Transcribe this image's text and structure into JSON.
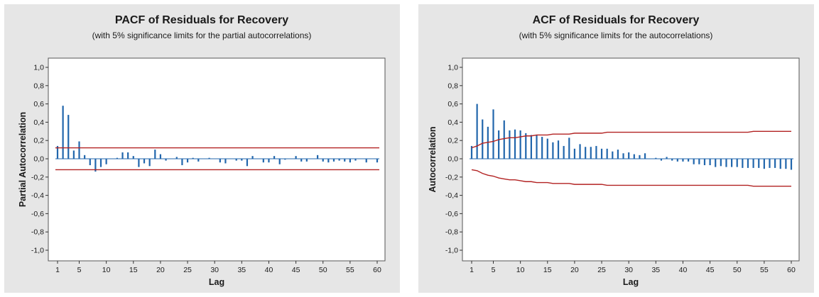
{
  "chart_data": [
    {
      "type": "bar",
      "title": "PACF of Residuals for Recovery",
      "subtitle": "(with 5% significance limits for the partial autocorrelations)",
      "xlabel": "Lag",
      "ylabel": "Partial Autocorrelation",
      "ylim": [
        -1.0,
        1.0
      ],
      "xlim": [
        1,
        60
      ],
      "xticks": [
        "1",
        "5",
        "10",
        "15",
        "20",
        "25",
        "30",
        "35",
        "40",
        "45",
        "50",
        "55",
        "60"
      ],
      "yticks": [
        "1,0",
        "0,8",
        "0,6",
        "0,4",
        "0,2",
        "0,0",
        "-0,2",
        "-0,4",
        "-0,6",
        "-0,8",
        "-1,0"
      ],
      "grid": false,
      "bar_color": "#2166ac",
      "limit_color": "#b22222",
      "x": [
        1,
        2,
        3,
        4,
        5,
        6,
        7,
        8,
        9,
        10,
        11,
        12,
        13,
        14,
        15,
        16,
        17,
        18,
        19,
        20,
        21,
        22,
        23,
        24,
        25,
        26,
        27,
        28,
        29,
        30,
        31,
        32,
        33,
        34,
        35,
        36,
        37,
        38,
        39,
        40,
        41,
        42,
        43,
        44,
        45,
        46,
        47,
        48,
        49,
        50,
        51,
        52,
        53,
        54,
        55,
        56,
        57,
        58,
        59,
        60
      ],
      "values": [
        0.14,
        0.58,
        0.48,
        0.09,
        0.19,
        0.04,
        -0.07,
        -0.14,
        -0.09,
        -0.06,
        0.0,
        0.01,
        0.07,
        0.07,
        0.03,
        -0.09,
        -0.05,
        -0.08,
        0.1,
        0.05,
        -0.02,
        0.0,
        0.02,
        -0.07,
        -0.04,
        0.01,
        -0.03,
        0.0,
        0.01,
        0.0,
        -0.04,
        -0.05,
        0.0,
        -0.02,
        -0.02,
        -0.08,
        0.03,
        0.0,
        -0.04,
        -0.04,
        0.03,
        -0.06,
        -0.01,
        0.0,
        0.03,
        -0.03,
        -0.03,
        0.0,
        0.04,
        -0.03,
        -0.04,
        -0.03,
        -0.02,
        -0.03,
        -0.04,
        -0.02,
        0.0,
        -0.04,
        0.0,
        -0.04
      ],
      "limits": {
        "upper": 0.12,
        "lower": -0.12
      }
    },
    {
      "type": "bar",
      "title": "ACF of Residuals for Recovery",
      "subtitle": "(with 5% significance limits for the autocorrelations)",
      "xlabel": "Lag",
      "ylabel": "Autocorrelation",
      "ylim": [
        -1.0,
        1.0
      ],
      "xlim": [
        1,
        60
      ],
      "xticks": [
        "1",
        "5",
        "10",
        "15",
        "20",
        "25",
        "30",
        "35",
        "40",
        "45",
        "50",
        "55",
        "60"
      ],
      "yticks": [
        "1,0",
        "0,8",
        "0,6",
        "0,4",
        "0,2",
        "0,0",
        "-0,2",
        "-0,4",
        "-0,6",
        "-0,8",
        "-1,0"
      ],
      "grid": false,
      "bar_color": "#2166ac",
      "limit_color": "#b22222",
      "x": [
        1,
        2,
        3,
        4,
        5,
        6,
        7,
        8,
        9,
        10,
        11,
        12,
        13,
        14,
        15,
        16,
        17,
        18,
        19,
        20,
        21,
        22,
        23,
        24,
        25,
        26,
        27,
        28,
        29,
        30,
        31,
        32,
        33,
        34,
        35,
        36,
        37,
        38,
        39,
        40,
        41,
        42,
        43,
        44,
        45,
        46,
        47,
        48,
        49,
        50,
        51,
        52,
        53,
        54,
        55,
        56,
        57,
        58,
        59,
        60
      ],
      "values": [
        0.14,
        0.6,
        0.43,
        0.35,
        0.54,
        0.31,
        0.42,
        0.31,
        0.32,
        0.31,
        0.28,
        0.26,
        0.26,
        0.24,
        0.22,
        0.18,
        0.2,
        0.14,
        0.23,
        0.11,
        0.16,
        0.13,
        0.13,
        0.14,
        0.11,
        0.11,
        0.08,
        0.1,
        0.06,
        0.07,
        0.05,
        0.04,
        0.06,
        0.0,
        0.01,
        -0.02,
        0.02,
        -0.02,
        -0.03,
        -0.03,
        -0.03,
        -0.06,
        -0.06,
        -0.07,
        -0.07,
        -0.09,
        -0.08,
        -0.09,
        -0.09,
        -0.09,
        -0.1,
        -0.1,
        -0.1,
        -0.1,
        -0.11,
        -0.1,
        -0.1,
        -0.11,
        -0.11,
        -0.12
      ],
      "limits": {
        "upper": [
          0.12,
          0.14,
          0.17,
          0.18,
          0.19,
          0.21,
          0.22,
          0.23,
          0.23,
          0.24,
          0.25,
          0.25,
          0.26,
          0.26,
          0.26,
          0.27,
          0.27,
          0.27,
          0.27,
          0.28,
          0.28,
          0.28,
          0.28,
          0.28,
          0.28,
          0.29,
          0.29,
          0.29,
          0.29,
          0.29,
          0.29,
          0.29,
          0.29,
          0.29,
          0.29,
          0.29,
          0.29,
          0.29,
          0.29,
          0.29,
          0.29,
          0.29,
          0.29,
          0.29,
          0.29,
          0.29,
          0.29,
          0.29,
          0.29,
          0.29,
          0.29,
          0.29,
          0.3,
          0.3,
          0.3,
          0.3,
          0.3,
          0.3,
          0.3,
          0.3
        ],
        "lower": [
          -0.12,
          -0.13,
          -0.16,
          -0.18,
          -0.19,
          -0.21,
          -0.22,
          -0.23,
          -0.23,
          -0.24,
          -0.25,
          -0.25,
          -0.26,
          -0.26,
          -0.26,
          -0.27,
          -0.27,
          -0.27,
          -0.27,
          -0.28,
          -0.28,
          -0.28,
          -0.28,
          -0.28,
          -0.28,
          -0.29,
          -0.29,
          -0.29,
          -0.29,
          -0.29,
          -0.29,
          -0.29,
          -0.29,
          -0.29,
          -0.29,
          -0.29,
          -0.29,
          -0.29,
          -0.29,
          -0.29,
          -0.29,
          -0.29,
          -0.29,
          -0.29,
          -0.29,
          -0.29,
          -0.29,
          -0.29,
          -0.29,
          -0.29,
          -0.29,
          -0.29,
          -0.3,
          -0.3,
          -0.3,
          -0.3,
          -0.3,
          -0.3,
          -0.3,
          -0.3
        ]
      }
    }
  ]
}
